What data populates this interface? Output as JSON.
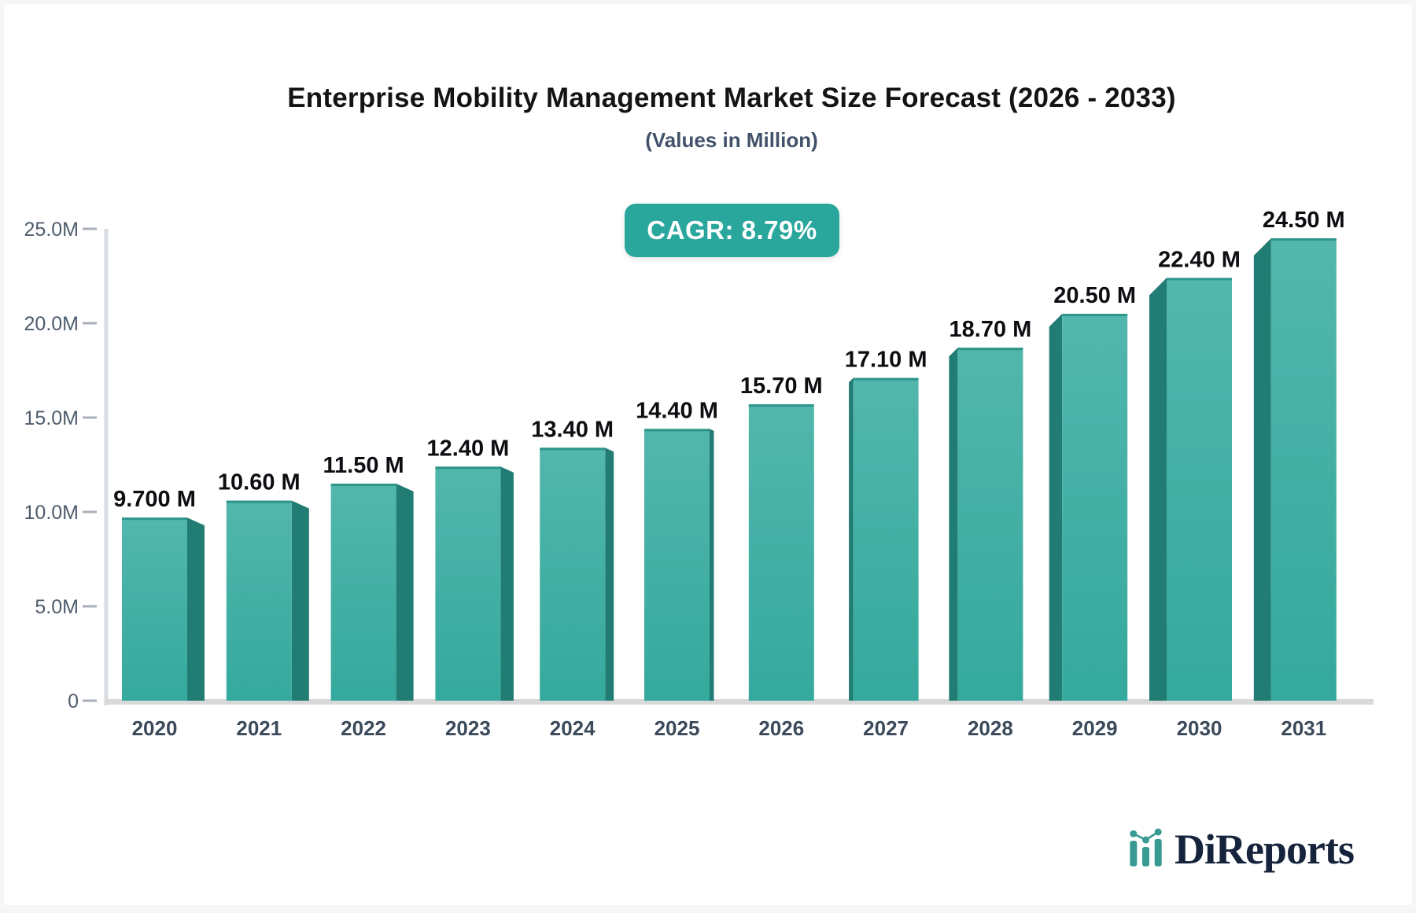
{
  "title": "Enterprise Mobility Management Market Size Forecast (2026 - 2033)",
  "subtitle": "(Values in Million)",
  "cagr_badge": "CAGR: 8.79%",
  "logo": {
    "brand": "DiReports"
  },
  "chart_data": {
    "type": "bar",
    "title": "Enterprise Mobility Management Market Size Forecast (2026 - 2033)",
    "subtitle": "(Values in Million)",
    "annotation": "CAGR: 8.79%",
    "unit": "Million",
    "categories": [
      "2020",
      "2021",
      "2022",
      "2023",
      "2024",
      "2025",
      "2026",
      "2027",
      "2028",
      "2029",
      "2030",
      "2031"
    ],
    "values": [
      9.7,
      10.6,
      11.5,
      12.4,
      13.4,
      14.4,
      15.7,
      17.1,
      18.7,
      20.5,
      22.4,
      24.5
    ],
    "bar_labels": [
      "9.700 M",
      "10.60 M",
      "11.50 M",
      "12.40 M",
      "13.40 M",
      "14.40 M",
      "15.70 M",
      "17.10 M",
      "18.70 M",
      "20.50 M",
      "22.40 M",
      "24.50 M"
    ],
    "yticks": [
      {
        "value": 0,
        "label": "0"
      },
      {
        "value": 5,
        "label": "5.0M"
      },
      {
        "value": 10,
        "label": "10.0M"
      },
      {
        "value": 15,
        "label": "15.0M"
      },
      {
        "value": 20,
        "label": "20.0M"
      },
      {
        "value": 25,
        "label": "25.0M"
      }
    ],
    "ylim": [
      0,
      25
    ],
    "grid": false,
    "legend": false,
    "colors": {
      "bar_face_top": "#52b6ac",
      "bar_face_bottom": "#35a99d",
      "bar_side": "#217c73",
      "bar_top_edge": "#2e958b",
      "badge_bg": "#2aa79d",
      "axis_line": "#d9dce1",
      "baseline": "#d9d9d9",
      "tick": "#a9b0b9",
      "y_label": "#4e5c6d",
      "x_label": "#3b4a5a",
      "value_label": "#0d0d12",
      "logo_teal": "#399a94",
      "logo_navy": "#16233c"
    }
  }
}
